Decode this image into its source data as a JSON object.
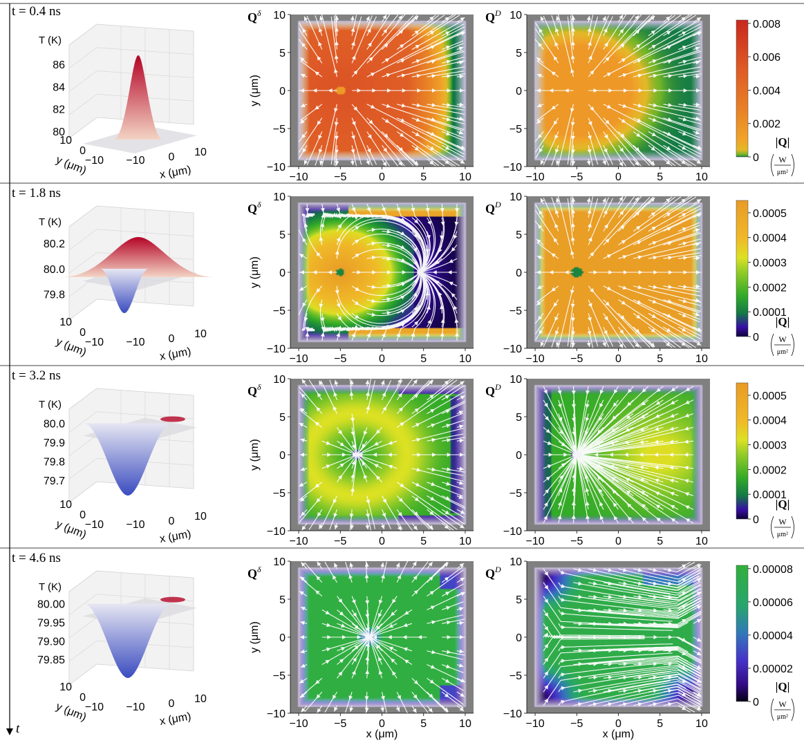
{
  "time_axis_label": "t",
  "colors": {
    "gray_boundary": "#7f7f7f",
    "stream": "#ffffff",
    "temp_hot": "#b40426",
    "temp_cold": "#3b4cc0",
    "temp_neutral": "#dddddd"
  },
  "chart_data": [
    {
      "type": "figure_row",
      "time_label": "t = 0.4 ns",
      "surface": {
        "type": "surface3d",
        "zlabel": "T (K)",
        "xlabel": "x (μm)",
        "ylabel": "y (μm)",
        "zticks": [
          "80",
          "82",
          "84",
          "86"
        ],
        "xticks": [
          "−10",
          "0",
          "10"
        ],
        "yticks": [
          "10",
          "0",
          "−10"
        ],
        "peak_K": 86.8,
        "base_K": 80.0,
        "min_K": 80.0
      },
      "panels": [
        {
          "label": "Q",
          "sup": "δ",
          "field": "q1_delta",
          "xticks": [
            "−10",
            "−5",
            "0",
            "5",
            "10"
          ],
          "yticks": [
            "10",
            "5",
            "0",
            "−5",
            "−10"
          ],
          "ylabel": "y (μm)",
          "xlabel": "",
          "xlim": [
            -11,
            11
          ],
          "ylim": [
            -10,
            10
          ]
        },
        {
          "label": "Q",
          "sup": "D",
          "field": "q1_D",
          "xticks": [
            "−10",
            "−5",
            "0",
            "5",
            "10"
          ],
          "yticks": [
            "10",
            "5",
            "0",
            "−5",
            "−10"
          ],
          "ylabel": "",
          "xlabel": "",
          "xlim": [
            -11,
            11
          ],
          "ylim": [
            -10,
            10
          ]
        }
      ],
      "colorbar": {
        "cmap": "heat",
        "max": 0.0082,
        "ticks": [
          "0.008",
          "0.006",
          "0.004",
          "0.002",
          "0"
        ],
        "tick_values": [
          0.008,
          0.006,
          0.004,
          0.002,
          0
        ],
        "label": "|Q|",
        "unit_num": "W",
        "unit_den": "μm²"
      }
    },
    {
      "type": "figure_row",
      "time_label": "t = 1.8 ns",
      "surface": {
        "type": "surface3d",
        "zlabel": "T (K)",
        "xlabel": "x (μm)",
        "ylabel": "y (μm)",
        "zticks": [
          "79.8",
          "80.0",
          "80.2"
        ],
        "xticks": [
          "−10",
          "0",
          "10"
        ],
        "yticks": [
          "10",
          "0",
          "−10"
        ],
        "peak_K": 80.25,
        "base_K": 80.0,
        "min_K": 79.65
      },
      "panels": [
        {
          "label": "Q",
          "sup": "δ",
          "field": "q2_delta",
          "xticks": [
            "−10",
            "−5",
            "0",
            "5",
            "10"
          ],
          "yticks": [
            "10",
            "5",
            "0",
            "−5",
            "−10"
          ],
          "ylabel": "y (μm)",
          "xlabel": "",
          "xlim": [
            -11,
            11
          ],
          "ylim": [
            -10,
            10
          ]
        },
        {
          "label": "Q",
          "sup": "D",
          "field": "q2_D",
          "xticks": [
            "−10",
            "−5",
            "0",
            "5",
            "10"
          ],
          "yticks": [
            "10",
            "5",
            "0",
            "−5",
            "−10"
          ],
          "ylabel": "",
          "xlabel": "",
          "xlim": [
            -11,
            11
          ],
          "ylim": [
            -10,
            10
          ]
        }
      ],
      "colorbar": {
        "cmap": "rainbow",
        "max": 0.00055,
        "ticks": [
          "0.0005",
          "0.0004",
          "0.0003",
          "0.0002",
          "0.0001",
          "0"
        ],
        "tick_values": [
          0.0005,
          0.0004,
          0.0003,
          0.0002,
          0.0001,
          0
        ],
        "label": "|Q|",
        "unit_num": "W",
        "unit_den": "μm²"
      }
    },
    {
      "type": "figure_row",
      "time_label": "t = 3.2 ns",
      "surface": {
        "type": "surface3d",
        "zlabel": "T (K)",
        "xlabel": "x (μm)",
        "ylabel": "y (μm)",
        "zticks": [
          "79.7",
          "79.8",
          "79.9",
          "80.0"
        ],
        "xticks": [
          "−10",
          "0",
          "10"
        ],
        "yticks": [
          "10",
          "0",
          "−10"
        ],
        "peak_K": 80.02,
        "base_K": 80.0,
        "min_K": 79.62
      },
      "panels": [
        {
          "label": "Q",
          "sup": "δ",
          "field": "q3_delta",
          "xticks": [
            "−10",
            "−5",
            "0",
            "5",
            "10"
          ],
          "yticks": [
            "10",
            "5",
            "0",
            "−5",
            "−10"
          ],
          "ylabel": "y (μm)",
          "xlabel": "",
          "xlim": [
            -11,
            11
          ],
          "ylim": [
            -10,
            10
          ]
        },
        {
          "label": "Q",
          "sup": "D",
          "field": "q3_D",
          "xticks": [
            "−10",
            "−5",
            "0",
            "5",
            "10"
          ],
          "yticks": [
            "10",
            "5",
            "0",
            "−5",
            "−10"
          ],
          "ylabel": "",
          "xlabel": "",
          "xlim": [
            -11,
            11
          ],
          "ylim": [
            -10,
            10
          ]
        }
      ],
      "colorbar": {
        "cmap": "rainbow",
        "max": 0.00055,
        "ticks": [
          "0.0005",
          "0.0004",
          "0.0003",
          "0.0002",
          "0.0001",
          "0"
        ],
        "tick_values": [
          0.0005,
          0.0004,
          0.0003,
          0.0002,
          0.0001,
          0
        ],
        "label": "|Q|",
        "unit_num": "W",
        "unit_den": "μm²"
      }
    },
    {
      "type": "figure_row",
      "time_label": "t = 4.6 ns",
      "surface": {
        "type": "surface3d",
        "zlabel": "T (K)",
        "xlabel": "x (μm)",
        "ylabel": "y (μm)",
        "zticks": [
          "79.85",
          "79.90",
          "79.95",
          "80.00"
        ],
        "xticks": [
          "−10",
          "0",
          "10"
        ],
        "yticks": [
          "10",
          "0",
          "−10"
        ],
        "peak_K": 80.005,
        "base_K": 80.0,
        "min_K": 79.8
      },
      "panels": [
        {
          "label": "Q",
          "sup": "δ",
          "field": "q4_delta",
          "xticks": [
            "−10",
            "−5",
            "0",
            "5",
            "10"
          ],
          "yticks": [
            "10",
            "5",
            "0",
            "−5",
            "−10"
          ],
          "ylabel": "y (μm)",
          "xlabel": "x (μm)",
          "xlim": [
            -11,
            11
          ],
          "ylim": [
            -10,
            10
          ]
        },
        {
          "label": "Q",
          "sup": "D",
          "field": "q4_D",
          "xticks": [
            "−10",
            "−5",
            "0",
            "5",
            "10"
          ],
          "yticks": [
            "10",
            "5",
            "0",
            "−5",
            "−10"
          ],
          "ylabel": "",
          "xlabel": "x (μm)",
          "xlim": [
            -11,
            11
          ],
          "ylim": [
            -10,
            10
          ]
        }
      ],
      "colorbar": {
        "cmap": "green",
        "max": 8.2e-05,
        "ticks": [
          "0.00008",
          "0.00006",
          "0.00004",
          "0.00002",
          "0"
        ],
        "tick_values": [
          8e-05,
          6e-05,
          4e-05,
          2e-05,
          0
        ],
        "label": "|Q|",
        "unit_num": "W",
        "unit_den": "μm²"
      }
    }
  ]
}
